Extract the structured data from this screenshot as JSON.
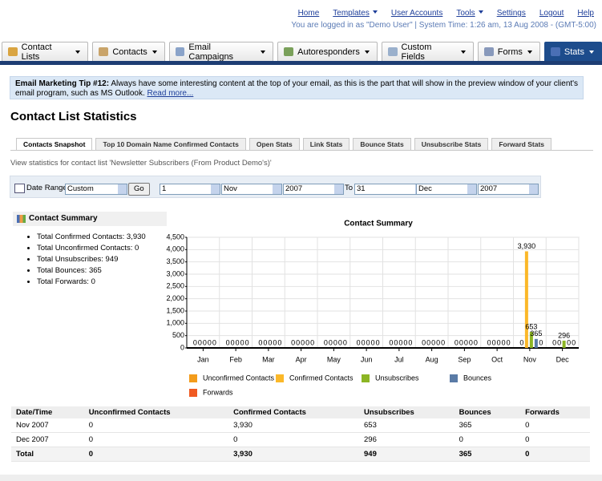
{
  "top_links": [
    "Home",
    "Templates",
    "User Accounts",
    "Tools",
    "Settings",
    "Logout",
    "Help"
  ],
  "status": "You are logged in as \"Demo User\" | System Time: 1:26 am, 13 Aug 2008 - (GMT-5:00)",
  "tabs": [
    "Contact Lists",
    "Contacts",
    "Email Campaigns",
    "Autoresponders",
    "Custom Fields",
    "Forms",
    "Stats"
  ],
  "tip": {
    "title": "Email Marketing Tip #12:",
    "text": "Always have some interesting content at the top of your email, as this is the part that will show in the preview window of your client's email program, such as MS Outlook.",
    "link": "Read more..."
  },
  "heading": "Contact List Statistics",
  "sub_tabs": [
    "Contacts Snapshot",
    "Top 10 Domain Name Confirmed Contacts",
    "Open Stats",
    "Link Stats",
    "Bounce Stats",
    "Unsubscribe Stats",
    "Forward Stats"
  ],
  "description": "View statistics for contact list 'Newsletter Subscribers (From Product Demo's)'",
  "date_range": {
    "label": "Date Range:",
    "preset": "Custom",
    "button": "Go",
    "from": [
      "1",
      "Nov",
      "2007"
    ],
    "to_label": "To",
    "to": [
      "31",
      "Dec",
      "2007"
    ]
  },
  "summary": {
    "title": "Contact Summary",
    "items": [
      "Total Confirmed Contacts: 3,930",
      "Total Unconfirmed Contacts: 0",
      "Total Unsubscribes: 949",
      "Total Bounces: 365",
      "Total Forwards: 0"
    ]
  },
  "chart_data": {
    "type": "bar",
    "title": "Contact Summary",
    "categories": [
      "Jan",
      "Feb",
      "Mar",
      "Apr",
      "May",
      "Jun",
      "Jul",
      "Aug",
      "Sep",
      "Oct",
      "Nov",
      "Dec"
    ],
    "series": [
      {
        "name": "Unconfirmed Contacts",
        "color": "#f39c1b",
        "values": [
          0,
          0,
          0,
          0,
          0,
          0,
          0,
          0,
          0,
          0,
          0,
          0
        ]
      },
      {
        "name": "Confirmed Contacts",
        "color": "#fbb829",
        "values": [
          0,
          0,
          0,
          0,
          0,
          0,
          0,
          0,
          0,
          0,
          3930,
          0
        ],
        "value_labels": [
          "0",
          "0",
          "0",
          "0",
          "0",
          "0",
          "0",
          "0",
          "0",
          "0",
          "3,930",
          "0"
        ]
      },
      {
        "name": "Unsubscribes",
        "color": "#8cb524",
        "values": [
          0,
          0,
          0,
          0,
          0,
          0,
          0,
          0,
          0,
          0,
          653,
          296
        ]
      },
      {
        "name": "Bounces",
        "color": "#5a7ba6",
        "values": [
          0,
          0,
          0,
          0,
          0,
          0,
          0,
          0,
          0,
          0,
          365,
          0
        ]
      },
      {
        "name": "Forwards",
        "color": "#f05a22",
        "values": [
          0,
          0,
          0,
          0,
          0,
          0,
          0,
          0,
          0,
          0,
          0,
          0
        ]
      }
    ],
    "ylim": [
      0,
      4500
    ],
    "yticks": [
      0,
      500,
      {
        "value": 1000,
        "label": "1,000"
      },
      {
        "value": 1500,
        "label": "1,500"
      },
      {
        "value": 2000,
        "label": "2,000"
      },
      {
        "value": 2500,
        "label": "2,500"
      },
      {
        "value": 3000,
        "label": "3,000"
      },
      {
        "value": 3500,
        "label": "3,500"
      },
      {
        "value": 4000,
        "label": "4,000"
      },
      {
        "value": 4500,
        "label": "4,500"
      }
    ],
    "grid": true
  },
  "table": {
    "columns": [
      "Date/Time",
      "Unconfirmed Contacts",
      "Confirmed Contacts",
      "Unsubscribes",
      "Bounces",
      "Forwards"
    ],
    "rows": [
      [
        "Nov 2007",
        "0",
        "3,930",
        "653",
        "365",
        "0"
      ],
      [
        "Dec 2007",
        "0",
        "0",
        "296",
        "0",
        "0"
      ],
      [
        "Total",
        "0",
        "3,930",
        "949",
        "365",
        "0"
      ]
    ]
  }
}
